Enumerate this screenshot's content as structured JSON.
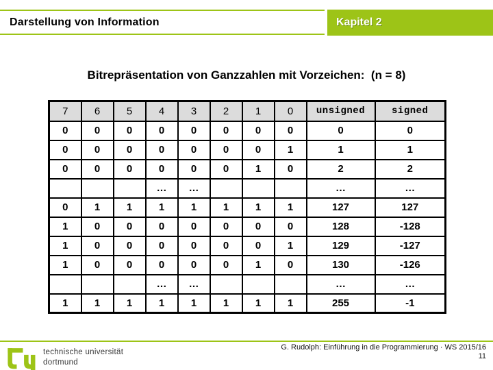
{
  "slide": {
    "header": {
      "title": "Darstellung von Information",
      "chapter": "Kapitel 2"
    },
    "title": "Bitrepräsentation von Ganzzahlen mit Vorzeichen:  (n = 8)",
    "table": {
      "bit_headers": [
        "7",
        "6",
        "5",
        "4",
        "3",
        "2",
        "1",
        "0"
      ],
      "value_headers": [
        "unsigned",
        "signed"
      ],
      "rows": [
        {
          "bits": [
            "0",
            "0",
            "0",
            "0",
            "0",
            "0",
            "0",
            "0"
          ],
          "unsigned": "0",
          "signed": "0"
        },
        {
          "bits": [
            "0",
            "0",
            "0",
            "0",
            "0",
            "0",
            "0",
            "1"
          ],
          "unsigned": "1",
          "signed": "1"
        },
        {
          "bits": [
            "0",
            "0",
            "0",
            "0",
            "0",
            "0",
            "1",
            "0"
          ],
          "unsigned": "2",
          "signed": "2"
        },
        {
          "bits": [
            "",
            "",
            "",
            "…",
            "…",
            "",
            "",
            ""
          ],
          "unsigned": "…",
          "signed": "…"
        },
        {
          "bits": [
            "0",
            "1",
            "1",
            "1",
            "1",
            "1",
            "1",
            "1"
          ],
          "unsigned": "127",
          "signed": "127"
        },
        {
          "bits": [
            "1",
            "0",
            "0",
            "0",
            "0",
            "0",
            "0",
            "0"
          ],
          "unsigned": "128",
          "signed": "-128"
        },
        {
          "bits": [
            "1",
            "0",
            "0",
            "0",
            "0",
            "0",
            "0",
            "1"
          ],
          "unsigned": "129",
          "signed": "-127"
        },
        {
          "bits": [
            "1",
            "0",
            "0",
            "0",
            "0",
            "0",
            "1",
            "0"
          ],
          "unsigned": "130",
          "signed": "-126"
        },
        {
          "bits": [
            "",
            "",
            "",
            "…",
            "…",
            "",
            "",
            ""
          ],
          "unsigned": "…",
          "signed": "…"
        },
        {
          "bits": [
            "1",
            "1",
            "1",
            "1",
            "1",
            "1",
            "1",
            "1"
          ],
          "unsigned": "255",
          "signed": "-1"
        }
      ]
    },
    "footer": {
      "logo_line1": "technische universität",
      "logo_line2": "dortmund",
      "credit": "G. Rudolph: Einführung in die Programmierung · WS 2015/16",
      "page": "11"
    },
    "colors": {
      "accent_green": "#9dc417",
      "table_header_gray": "#dcdcdc"
    }
  }
}
